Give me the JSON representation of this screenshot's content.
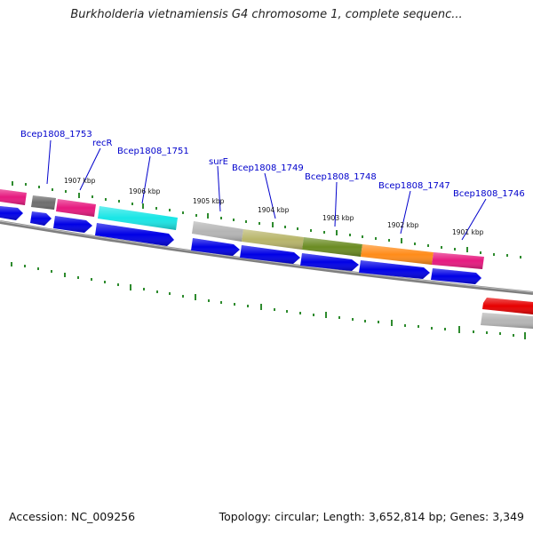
{
  "title": "Burkholderia vietnamiensis G4 chromosome 1, complete sequenc...",
  "footer": {
    "accession": "Accession: NC_009256",
    "topology": "Topology: circular; Length: 3,652,814 bp; Genes: 3,349"
  },
  "colors": {
    "backbone": "#7f7f7f",
    "tick": "#2e8b2e",
    "cds": "#0000e6",
    "label": "#0000cc"
  },
  "kbp_labels": [
    "1907 kbp",
    "1906 kbp",
    "1905 kbp",
    "1904 kbp",
    "1903 kbp",
    "1902 kbp",
    "1901 kbp"
  ],
  "gene_labels": [
    "Bcep1808_1753",
    "recR",
    "Bcep1808_1751",
    "surE",
    "Bcep1808_1749",
    "Bcep1808_1748",
    "Bcep1808_1747",
    "Bcep1808_1746"
  ],
  "genes": [
    {
      "name": "edge-left",
      "color": "#e6197f"
    },
    {
      "name": "Bcep1808_1753",
      "color": "#6e6e6e"
    },
    {
      "name": "recR",
      "color": "#e6197f"
    },
    {
      "name": "Bcep1808_1751",
      "color": "#19e6e6"
    },
    {
      "name": "surE",
      "color": "#b5b5b5"
    },
    {
      "name": "Bcep1808_1749",
      "color": "#b8b56a"
    },
    {
      "name": "Bcep1808_1748",
      "color": "#6b8c23"
    },
    {
      "name": "Bcep1808_1747",
      "color": "#ff8c1a"
    },
    {
      "name": "Bcep1808_1746",
      "color": "#e6197f"
    },
    {
      "name": "edge-right-red",
      "color": "#e60000"
    },
    {
      "name": "edge-right-grey",
      "color": "#b5b5b5"
    }
  ]
}
